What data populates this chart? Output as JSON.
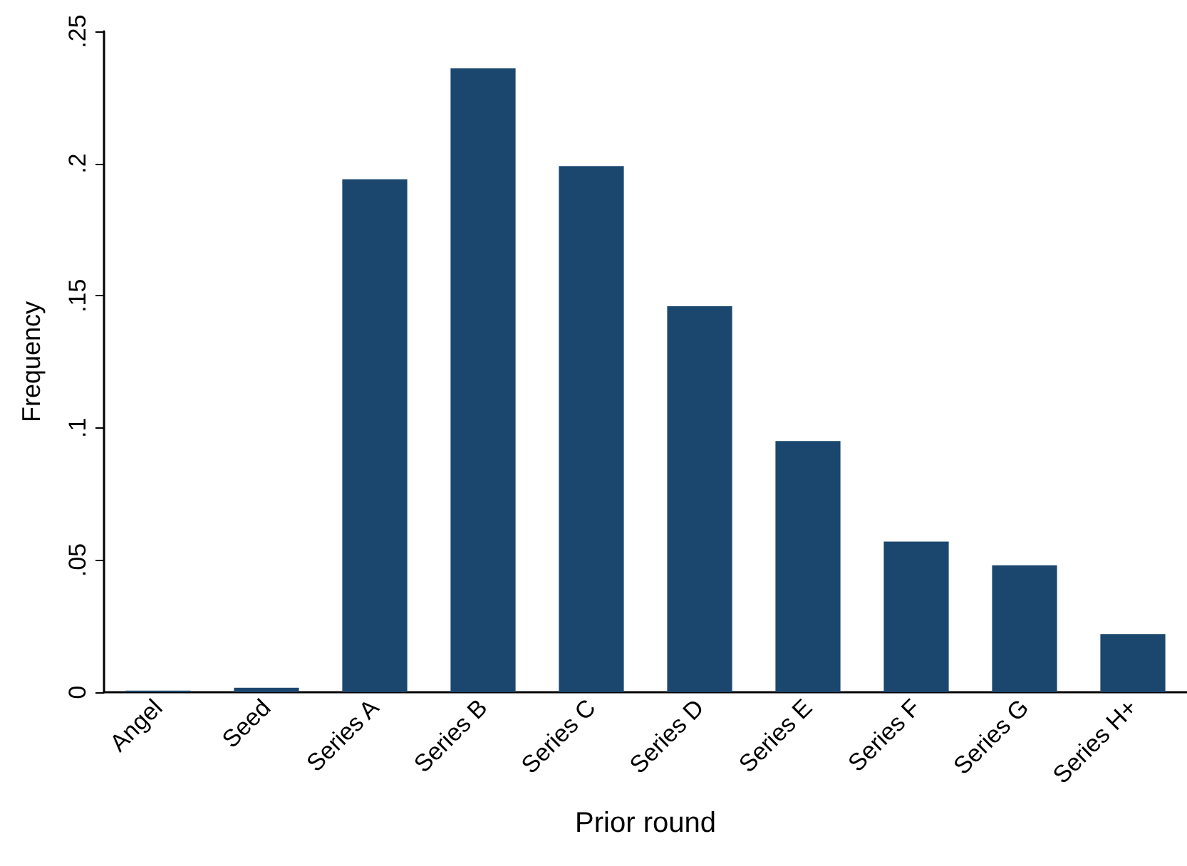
{
  "chart_data": {
    "type": "bar",
    "xlabel": "Prior round",
    "ylabel": "Frequency",
    "categories": [
      "Angel",
      "Seed",
      "Series A",
      "Series B",
      "Series C",
      "Series D",
      "Series E",
      "Series F",
      "Series G",
      "Series H+"
    ],
    "values": [
      0.0006,
      0.0017,
      0.194,
      0.236,
      0.199,
      0.146,
      0.095,
      0.057,
      0.048,
      0.022
    ],
    "color": "#1b476f",
    "ylim": [
      0,
      0.25
    ],
    "yticks": [
      {
        "value": 0,
        "label": "0"
      },
      {
        "value": 0.05,
        "label": ".05"
      },
      {
        "value": 0.1,
        "label": ".1"
      },
      {
        "value": 0.15,
        "label": ".15"
      },
      {
        "value": 0.2,
        "label": ".2"
      },
      {
        "value": 0.25,
        "label": ".25"
      }
    ],
    "grid": false
  }
}
